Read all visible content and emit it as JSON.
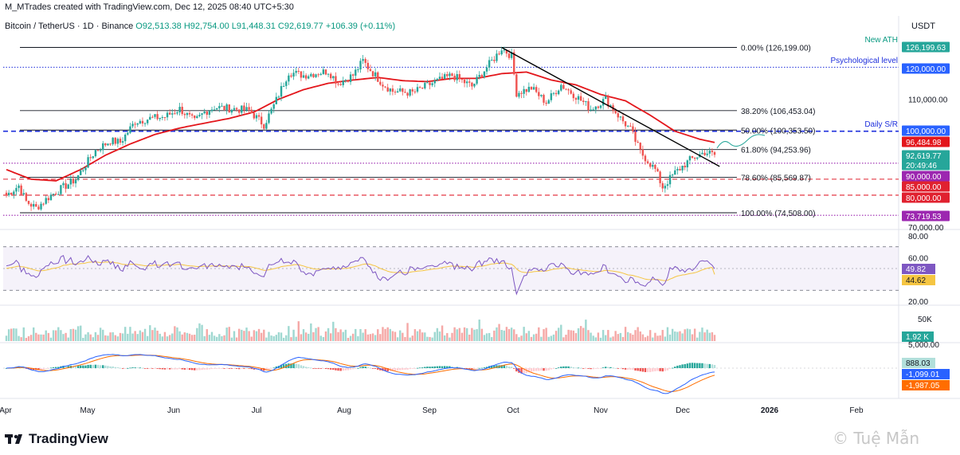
{
  "header": {
    "credit": "M_MTrades created with TradingView.com, Dec 12, 2025 08:40 UTC+5:30"
  },
  "symbol": {
    "name": "Bitcoin / TetherUS · 1D · Binance",
    "open": "O92,513.38",
    "high": "H92,754.00",
    "low": "L91,448.31",
    "close": "C92,619.77",
    "change": "+106.39 (+0.11%)"
  },
  "currency": "USDT",
  "colors": {
    "up": "#26a69a",
    "down": "#ef5350",
    "ma": "#e3161b",
    "trend": "#000000",
    "rsi": "#7e57c2",
    "rsi_ma": "#f5c542",
    "macd": "#2962ff",
    "signal": "#ff6d00",
    "blue_dash": "#1e2fdc",
    "red_dash": "#e0212f",
    "purple_dot": "#9c27b0"
  },
  "chart_data": [
    {
      "type": "candlestick",
      "title": "Bitcoin / TetherUS · 1D · Binance",
      "x_labels": [
        "Apr",
        "May",
        "Jun",
        "Jul",
        "Aug",
        "Sep",
        "Oct",
        "Nov",
        "Dec",
        "2026",
        "Feb"
      ],
      "ylim": [
        70000,
        130000
      ],
      "y_ticks": [
        {
          "v": 110000,
          "label": "110,000.00"
        },
        {
          "v": 70000,
          "label": "70,000.00"
        }
      ],
      "anchors": [
        [
          0,
          80000
        ],
        [
          5,
          83000
        ],
        [
          8,
          78000
        ],
        [
          12,
          76000
        ],
        [
          18,
          80000
        ],
        [
          28,
          85000
        ],
        [
          36,
          94000
        ],
        [
          42,
          97000
        ],
        [
          46,
          96500
        ],
        [
          52,
          103000
        ],
        [
          58,
          104000
        ],
        [
          64,
          104500
        ],
        [
          70,
          107000
        ],
        [
          76,
          103000
        ],
        [
          80,
          106000
        ],
        [
          84,
          107500
        ],
        [
          92,
          107000
        ],
        [
          98,
          106500
        ],
        [
          104,
          102000
        ],
        [
          108,
          108000
        ],
        [
          114,
          118500
        ],
        [
          120,
          117500
        ],
        [
          130,
          118800
        ],
        [
          134,
          115000
        ],
        [
          140,
          117500
        ],
        [
          144,
          122000
        ],
        [
          146,
          120000
        ],
        [
          152,
          114800
        ],
        [
          156,
          112500
        ],
        [
          164,
          112000
        ],
        [
          172,
          115000
        ],
        [
          180,
          117500
        ],
        [
          188,
          114000
        ],
        [
          194,
          120000
        ],
        [
          198,
          123800
        ],
        [
          200,
          126000
        ],
        [
          204,
          123500
        ],
        [
          206,
          112000
        ],
        [
          212,
          113500
        ],
        [
          218,
          109000
        ],
        [
          224,
          114500
        ],
        [
          230,
          111000
        ],
        [
          236,
          107000
        ],
        [
          242,
          110000
        ],
        [
          248,
          104000
        ],
        [
          252,
          100500
        ],
        [
          256,
          93500
        ],
        [
          262,
          88000
        ],
        [
          265,
          82500
        ],
        [
          270,
          87000
        ],
        [
          276,
          91000
        ],
        [
          282,
          93500
        ],
        [
          286,
          92619
        ]
      ],
      "ma_anchors": [
        [
          0,
          88000
        ],
        [
          10,
          85000
        ],
        [
          20,
          84500
        ],
        [
          30,
          88000
        ],
        [
          40,
          92500
        ],
        [
          50,
          96000
        ],
        [
          60,
          99000
        ],
        [
          70,
          101000
        ],
        [
          80,
          102500
        ],
        [
          90,
          104000
        ],
        [
          100,
          106000
        ],
        [
          110,
          110000
        ],
        [
          120,
          113000
        ],
        [
          130,
          115000
        ],
        [
          140,
          116000
        ],
        [
          150,
          116800
        ],
        [
          160,
          115800
        ],
        [
          170,
          115500
        ],
        [
          180,
          116500
        ],
        [
          190,
          116500
        ],
        [
          200,
          118000
        ],
        [
          210,
          118500
        ],
        [
          220,
          116000
        ],
        [
          230,
          114500
        ],
        [
          240,
          111500
        ],
        [
          250,
          109500
        ],
        [
          260,
          105000
        ],
        [
          270,
          100000
        ],
        [
          280,
          97500
        ],
        [
          286,
          96484.98
        ]
      ],
      "fib_levels": [
        {
          "label": "0.00% (126,199.00)",
          "value": 126199
        },
        {
          "label": "38.20% (106,453.04)",
          "value": 106453.04
        },
        {
          "label": "50.00% (100,353.50)",
          "value": 100353.5
        },
        {
          "label": "61.80% (94,253.96)",
          "value": 94253.96
        },
        {
          "label": "78.60% (85,569.87)",
          "value": 85569.87
        },
        {
          "label": "100.00% (74,508.00)",
          "value": 74508
        }
      ],
      "annotations": [
        {
          "text": "New ATH"
        },
        {
          "text": "Psychological level"
        },
        {
          "text": "Daily S/R"
        }
      ],
      "price_tags": [
        {
          "label": "126,199.63",
          "value": 126199.63,
          "color": "#26a69a"
        },
        {
          "label": "120,000.00",
          "value": 120000,
          "color": "#2962ff"
        },
        {
          "label": "100,000.00",
          "value": 100000,
          "color": "#2962ff"
        },
        {
          "label": "96,484.98",
          "value": 96484.98,
          "color": "#e3161b"
        },
        {
          "label": "92,619.77",
          "value": 92619.77,
          "color": "#26a69a"
        },
        {
          "label": "20:49:46",
          "value": 91300,
          "color": "#26a69a"
        },
        {
          "label": "90,000.00",
          "value": 90000,
          "color": "#9c27b0"
        },
        {
          "label": "85,000.00",
          "value": 85000,
          "color": "#e0212f"
        },
        {
          "label": "80,000.00",
          "value": 80000,
          "color": "#e0212f"
        },
        {
          "label": "73,719.53",
          "value": 73719.53,
          "color": "#9c27b0"
        }
      ],
      "horizontal_lines": [
        {
          "value": 120000,
          "style": "dotted-blue"
        },
        {
          "value": 100000,
          "style": "dashed-blue"
        },
        {
          "value": 90000,
          "style": "dotted-purple"
        },
        {
          "value": 85000,
          "style": "dashed-red"
        },
        {
          "value": 80000,
          "style": "dashed-red"
        },
        {
          "value": 73719.53,
          "style": "dotted-purple"
        }
      ],
      "trendline": [
        [
          200,
          126199
        ],
        [
          288,
          89000
        ]
      ]
    },
    {
      "type": "line",
      "title": "RSI",
      "ylim": [
        20,
        80
      ],
      "y_ticks": [
        {
          "v": 80,
          "label": "80.00"
        },
        {
          "v": 60,
          "label": "60.00"
        },
        {
          "v": 20,
          "label": "20.00"
        }
      ],
      "band": [
        30,
        70
      ],
      "rsi_value": {
        "label": "49.82",
        "value": 49.82
      },
      "rsi_ma_value": {
        "label": "44.62",
        "value": 44.62
      }
    },
    {
      "type": "bar",
      "title": "Volume",
      "y_ticks": [
        {
          "v": 50000,
          "label": "50K"
        }
      ],
      "last": {
        "label": "1.92 K",
        "value": 1920
      }
    },
    {
      "type": "line",
      "title": "MACD",
      "y_ticks": [
        {
          "v": 5000,
          "label": "5,000.00"
        }
      ],
      "histogram": {
        "label": "888.03",
        "value": 888.03
      },
      "macd": {
        "label": "-1,099.01",
        "value": -1099.01
      },
      "signal": {
        "label": "-1,987.05",
        "value": -1987.05
      }
    }
  ],
  "footer": {
    "logo": "TradingView",
    "watermark": "© Tuệ Mẫn"
  }
}
